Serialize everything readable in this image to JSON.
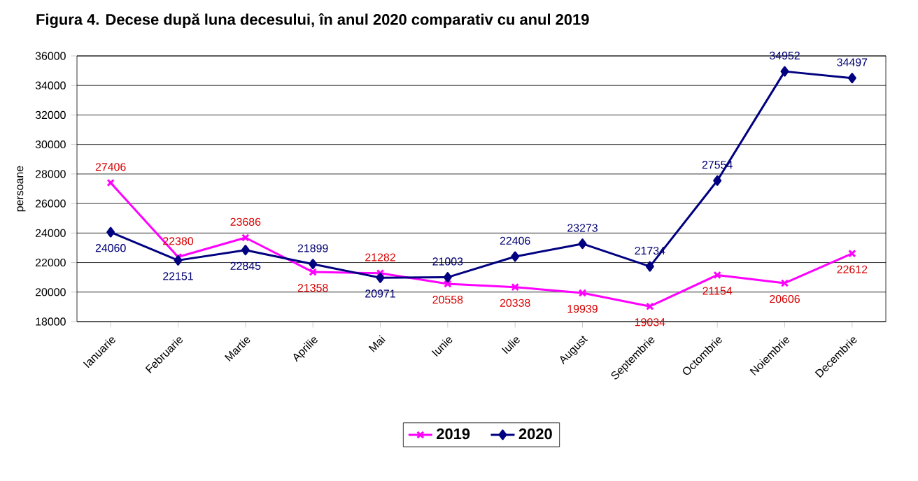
{
  "chart_data": {
    "type": "line",
    "title": "Figura 4. Decese după luna decesului, în anul 2020 comparativ cu anul 2019",
    "ylabel": "persoane",
    "categories": [
      "Ianuarie",
      "Februarie",
      "Martie",
      "Aprilie",
      "Mai",
      "Iunie",
      "Iulie",
      "August",
      "Septembrie",
      "Octombrie",
      "Noiembrie",
      "Decembrie"
    ],
    "series": [
      {
        "name": "2019",
        "color": "#ff00ff",
        "marker": "cross",
        "values": [
          27406,
          22380,
          23686,
          21358,
          21282,
          20558,
          20338,
          19939,
          19034,
          21154,
          20606,
          22612
        ]
      },
      {
        "name": "2020",
        "color": "#000080",
        "marker": "diamond",
        "values": [
          24060,
          22151,
          22845,
          21899,
          20971,
          21003,
          22406,
          23273,
          21734,
          27554,
          34952,
          34497
        ]
      }
    ],
    "ylim": [
      18000,
      36000
    ],
    "yticks": [
      18000,
      20000,
      22000,
      24000,
      26000,
      28000,
      30000,
      32000,
      34000,
      36000
    ],
    "grid": "y",
    "legend": "bottom",
    "data_labels": true,
    "line_style": "solid"
  }
}
